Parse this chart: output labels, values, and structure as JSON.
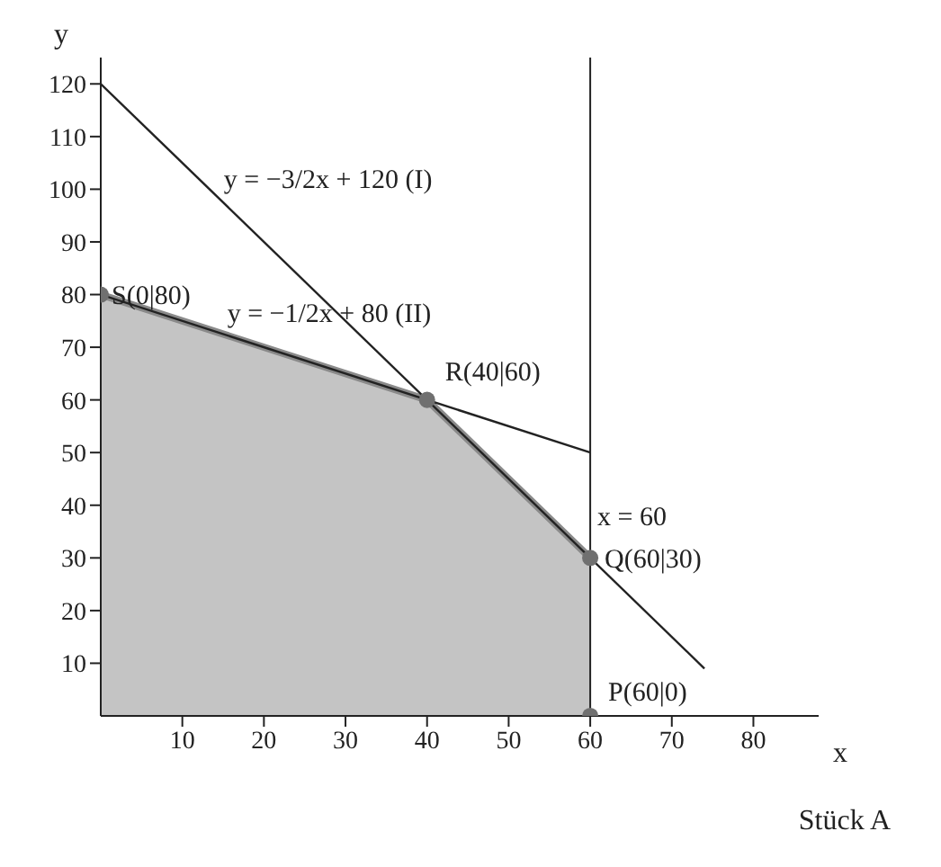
{
  "chart_data": {
    "type": "line",
    "xlabel": "x",
    "ylabel": "y",
    "xlim": [
      0,
      88
    ],
    "ylim": [
      0,
      125
    ],
    "xticks": [
      10,
      20,
      30,
      40,
      50,
      60,
      70,
      80
    ],
    "yticks": [
      10,
      20,
      30,
      40,
      50,
      60,
      70,
      80,
      90,
      100,
      110,
      120
    ],
    "grid": false,
    "legend": false,
    "series": [
      {
        "type": "area",
        "color": "#8a8a8a",
        "x": [
          0,
          40,
          60
        ],
        "values": [
          80,
          60,
          30
        ]
      },
      {
        "color": "#222222",
        "x": [
          0,
          74
        ],
        "values": [
          120,
          9
        ]
      },
      {
        "color": "#222222",
        "x": [
          0,
          60
        ],
        "values": [
          80,
          50
        ]
      },
      {
        "type": "scatter",
        "color": "#707070",
        "marker": "circle",
        "x": [
          0,
          40,
          60,
          60
        ],
        "values": [
          80,
          60,
          30,
          0
        ]
      }
    ],
    "ref_lines": [
      {
        "axis": "x",
        "value": 60,
        "color": "#222222"
      }
    ],
    "annotations": [
      {
        "text": "S(0|80)",
        "x": 0,
        "y": 80
      },
      {
        "text": "R(40|60)",
        "x": 40,
        "y": 60
      },
      {
        "text": "Q(60|30)",
        "x": 60,
        "y": 30
      },
      {
        "text": "P(60|0)",
        "x": 60,
        "y": 0
      },
      {
        "text": "x = 60",
        "x": 60,
        "y": 38
      },
      {
        "text": "y = −3/2x + 120 (I)",
        "x": 12,
        "y": 102
      },
      {
        "text": "y = −1/2x + 80 (II)",
        "x": 28,
        "y": 66
      },
      "Stück A"
    ]
  }
}
